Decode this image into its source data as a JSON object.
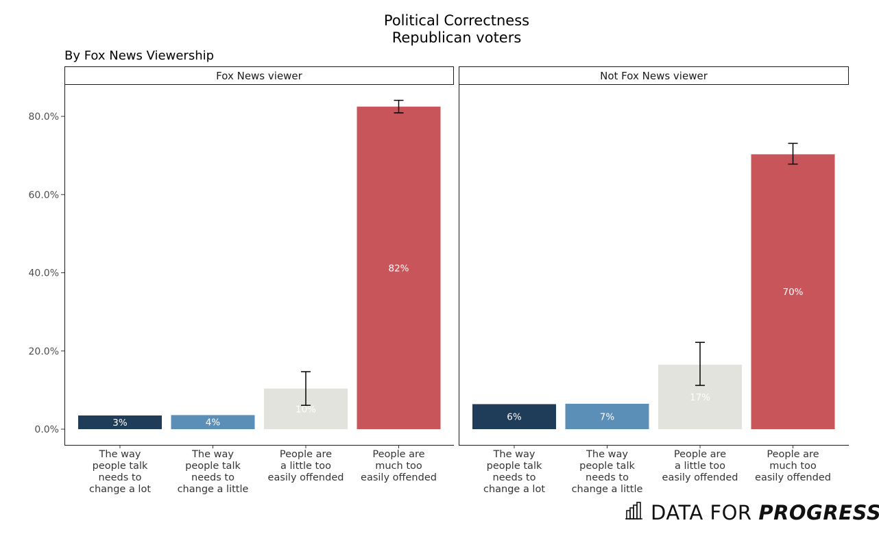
{
  "chart_data": {
    "type": "bar",
    "title": "Political Correctness",
    "subtitle_line2": "Republican voters",
    "caption_top_left": "By Fox News Viewership",
    "ylabel": "",
    "xlabel": "",
    "ylim": [
      0,
      0.88
    ],
    "yticks": [
      0,
      0.2,
      0.4,
      0.6,
      0.8
    ],
    "ytick_labels": [
      "0.0%",
      "20.0%",
      "40.0%",
      "60.0%",
      "80.0%"
    ],
    "categories": [
      [
        "The way",
        "people talk",
        "needs to",
        "change a lot"
      ],
      [
        "The way",
        "people talk",
        "needs to",
        "change a little"
      ],
      [
        "People are",
        "a little too",
        "easily offended"
      ],
      [
        "People are",
        "much too",
        "easily offended"
      ]
    ],
    "colors": [
      "#1f3c58",
      "#5b8fb8",
      "#e3e3dd",
      "#c7555a"
    ],
    "panels": [
      {
        "name": "Fox News viewer",
        "values": [
          0.035,
          0.036,
          0.104,
          0.825
        ],
        "labels": [
          "3%",
          "4%",
          "10%",
          "82%"
        ],
        "err_low": [
          null,
          null,
          0.061,
          0.809
        ],
        "err_high": [
          null,
          null,
          0.147,
          0.841
        ]
      },
      {
        "name": "Not Fox News viewer",
        "values": [
          0.064,
          0.065,
          0.165,
          0.703
        ],
        "labels": [
          "6%",
          "7%",
          "17%",
          "70%"
        ],
        "err_low": [
          null,
          null,
          0.112,
          0.678
        ],
        "err_high": [
          null,
          null,
          0.222,
          0.731
        ]
      }
    ]
  },
  "logo": {
    "text_regular": "DATA FOR ",
    "text_bold": "PROGRESS",
    "icon": "bar-chart-icon"
  }
}
